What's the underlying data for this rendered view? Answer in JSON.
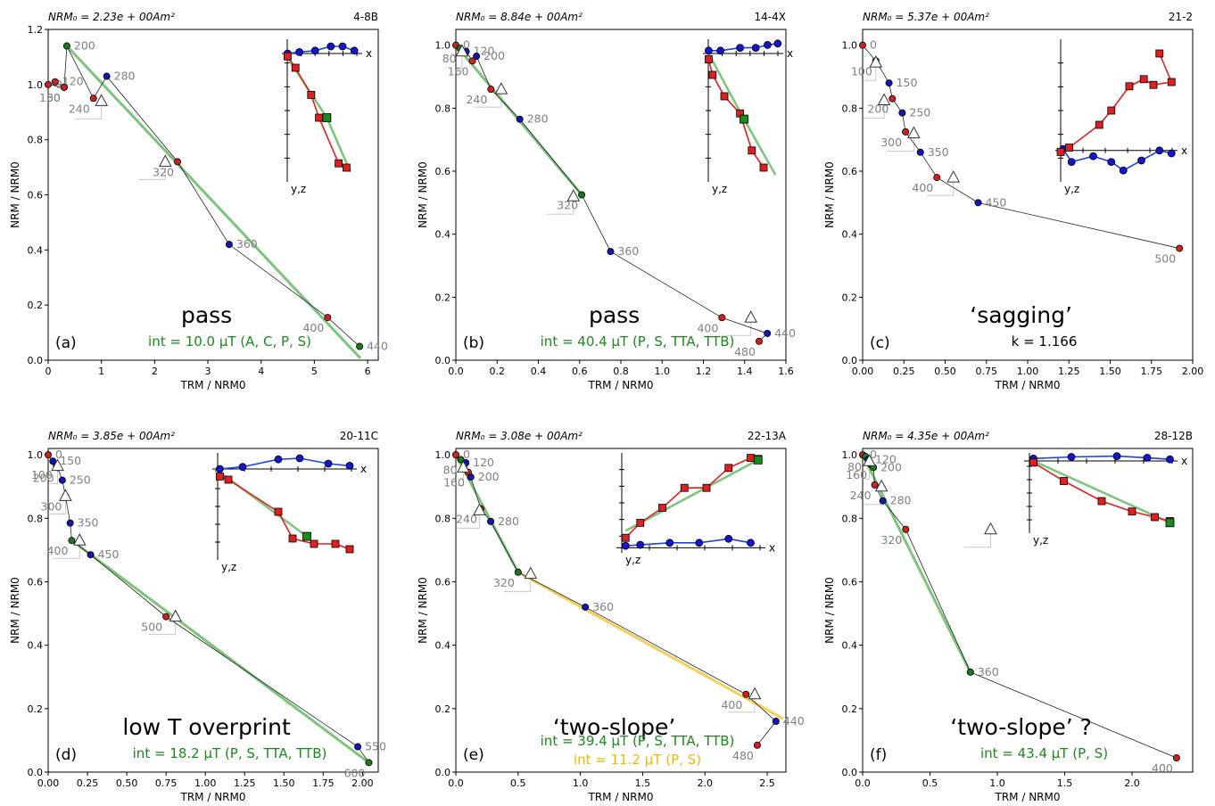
{
  "chart_data": [
    {
      "id": "a",
      "type": "scatter",
      "header_left": "NRM₀ = 2.23e + 00Am²",
      "header_right": "4-8B",
      "xlabel": "TRM / NRM0",
      "ylabel": "NRM / NRM0",
      "xlim": [
        0,
        6.2
      ],
      "ylim": [
        0,
        1.2
      ],
      "xticks": [
        "0",
        "1",
        "2",
        "3",
        "4",
        "5",
        "6"
      ],
      "xtick_values": [
        0,
        1,
        2,
        3,
        4,
        5,
        6
      ],
      "yticks": [
        "0.0",
        "0.2",
        "0.4",
        "0.6",
        "0.8",
        "1.0",
        "1.2"
      ],
      "ytick_values": [
        0,
        0.2,
        0.4,
        0.6,
        0.8,
        1.0,
        1.2
      ],
      "points": [
        {
          "x": 0.0,
          "y": 1.0,
          "label": "0",
          "color": "#cc2222"
        },
        {
          "x": 0.3,
          "y": 0.99,
          "label": "80",
          "color": "#cc2222"
        },
        {
          "x": 0.13,
          "y": 1.01,
          "label": "120",
          "color": "#cc2222"
        },
        {
          "x": 0.3,
          "y": 0.99,
          "label": "160",
          "color": "#cc2222"
        },
        {
          "x": 0.35,
          "y": 1.14,
          "label": "200",
          "color": "#1a7a1a"
        },
        {
          "x": 0.85,
          "y": 0.95,
          "label": "240",
          "color": "#cc2222"
        },
        {
          "x": 1.1,
          "y": 1.03,
          "label": "280",
          "color": "#1515b0"
        },
        {
          "x": 2.43,
          "y": 0.72,
          "label": "320",
          "color": "#cc2222"
        },
        {
          "x": 3.4,
          "y": 0.42,
          "label": "360",
          "color": "#1515b0"
        },
        {
          "x": 5.25,
          "y": 0.155,
          "label": "400",
          "color": "#cc2222"
        },
        {
          "x": 5.85,
          "y": 0.05,
          "label": "440",
          "color": "#1a7a1a"
        }
      ],
      "fit_line": [
        [
          0.35,
          1.14
        ],
        [
          5.85,
          0.01
        ]
      ],
      "ptrm_checks": [
        {
          "x": 1.0,
          "y": 0.94
        },
        {
          "x": 2.2,
          "y": 0.72
        }
      ],
      "verdict": "pass",
      "int_label": "int = 10.0 μT (A, C, P, S)",
      "int_color": "#1a8a1a",
      "letter": "(a)"
    },
    {
      "id": "b",
      "type": "scatter",
      "header_left": "NRM₀ = 8.84e + 00Am²",
      "header_right": "14-4X",
      "xlabel": "TRM / NRM0",
      "ylabel": "NRM / NRM0",
      "xlim": [
        0,
        1.6
      ],
      "ylim": [
        0,
        1.05
      ],
      "xticks": [
        "0.0",
        "0.2",
        "0.4",
        "0.6",
        "0.8",
        "1.0",
        "1.2",
        "1.4",
        "1.6"
      ],
      "xtick_values": [
        0,
        0.2,
        0.4,
        0.6,
        0.8,
        1.0,
        1.2,
        1.4,
        1.6
      ],
      "yticks": [
        "0.0",
        "0.2",
        "0.4",
        "0.6",
        "0.8",
        "1.0"
      ],
      "ytick_values": [
        0,
        0.2,
        0.4,
        0.6,
        0.8,
        1.0
      ],
      "points": [
        {
          "x": 0.0,
          "y": 1.0,
          "label": "0",
          "color": "#cc2222"
        },
        {
          "x": 0.02,
          "y": 0.99,
          "label": "80",
          "color": "#1a7a1a"
        },
        {
          "x": 0.05,
          "y": 0.98,
          "label": "120",
          "color": "#1515b0"
        },
        {
          "x": 0.08,
          "y": 0.95,
          "label": "160",
          "color": "#cc2222"
        },
        {
          "x": 0.1,
          "y": 0.965,
          "label": "200",
          "color": "#1515b0"
        },
        {
          "x": 0.17,
          "y": 0.86,
          "label": "240",
          "color": "#cc2222"
        },
        {
          "x": 0.31,
          "y": 0.765,
          "label": "280",
          "color": "#1515b0"
        },
        {
          "x": 0.61,
          "y": 0.525,
          "label": "320",
          "color": "#1a7a1a"
        },
        {
          "x": 0.75,
          "y": 0.345,
          "label": "360",
          "color": "#1515b0"
        },
        {
          "x": 1.29,
          "y": 0.135,
          "label": "400",
          "color": "#cc2222"
        },
        {
          "x": 1.51,
          "y": 0.085,
          "label": "440",
          "color": "#1515b0"
        },
        {
          "x": 1.47,
          "y": 0.06,
          "label": "480",
          "color": "#cc2222"
        }
      ],
      "fit_line": [
        [
          0.0,
          1.0
        ],
        [
          0.61,
          0.525
        ]
      ],
      "ptrm_checks": [
        {
          "x": 0.03,
          "y": 0.98
        },
        {
          "x": 0.22,
          "y": 0.86
        },
        {
          "x": 0.57,
          "y": 0.52
        },
        {
          "x": 1.43,
          "y": 0.135
        }
      ],
      "verdict": "pass",
      "int_label": "int = 40.4 μT (P, S, TTA, TTB)",
      "int_color": "#1a8a1a",
      "letter": "(b)"
    },
    {
      "id": "c",
      "type": "scatter",
      "header_left": "NRM₀ = 5.37e + 00Am²",
      "header_right": "21-2",
      "xlabel": "TRM / NRM0",
      "ylabel": "NRM / NRM0",
      "xlim": [
        0,
        2.0
      ],
      "ylim": [
        0,
        1.05
      ],
      "xticks": [
        "0.00",
        "0.25",
        "0.50",
        "0.75",
        "1.00",
        "1.25",
        "1.50",
        "1.75",
        "2.00"
      ],
      "xtick_values": [
        0,
        0.25,
        0.5,
        0.75,
        1.0,
        1.25,
        1.5,
        1.75,
        2.0
      ],
      "yticks": [
        "0.0",
        "0.2",
        "0.4",
        "0.6",
        "0.8",
        "1.0"
      ],
      "ytick_values": [
        0,
        0.2,
        0.4,
        0.6,
        0.8,
        1.0
      ],
      "points": [
        {
          "x": 0.0,
          "y": 1.0,
          "label": "0",
          "color": "#cc2222"
        },
        {
          "x": 0.08,
          "y": 0.95,
          "label": "100",
          "color": "#1515b0"
        },
        {
          "x": 0.16,
          "y": 0.88,
          "label": "150",
          "color": "#1515b0"
        },
        {
          "x": 0.18,
          "y": 0.83,
          "label": "200",
          "color": "#cc2222"
        },
        {
          "x": 0.24,
          "y": 0.785,
          "label": "250",
          "color": "#1515b0"
        },
        {
          "x": 0.26,
          "y": 0.725,
          "label": "300",
          "color": "#cc2222"
        },
        {
          "x": 0.35,
          "y": 0.66,
          "label": "350",
          "color": "#1515b0"
        },
        {
          "x": 0.45,
          "y": 0.58,
          "label": "400",
          "color": "#cc2222"
        },
        {
          "x": 0.7,
          "y": 0.5,
          "label": "450",
          "color": "#1515b0"
        },
        {
          "x": 1.92,
          "y": 0.355,
          "label": "500",
          "color": "#cc2222"
        }
      ],
      "fit_line": null,
      "ptrm_checks": [
        {
          "x": 0.08,
          "y": 0.945
        },
        {
          "x": 0.13,
          "y": 0.825
        },
        {
          "x": 0.31,
          "y": 0.72
        },
        {
          "x": 0.55,
          "y": 0.58
        }
      ],
      "verdict": "‘sagging’",
      "int_label": "k = 1.166",
      "int_color": "#000000",
      "letter": "(c)"
    },
    {
      "id": "d",
      "type": "scatter",
      "header_left": "NRM₀ = 3.85e + 00Am²",
      "header_right": "20-11C",
      "xlabel": "TRM / NRM0",
      "ylabel": "NRM / NRM0",
      "xlim": [
        0,
        2.1
      ],
      "ylim": [
        0,
        1.02
      ],
      "xticks": [
        "0.00",
        "0.25",
        "0.50",
        "0.75",
        "1.00",
        "1.25",
        "1.50",
        "1.75",
        "2.00"
      ],
      "xtick_values": [
        0,
        0.25,
        0.5,
        0.75,
        1.0,
        1.25,
        1.5,
        1.75,
        2.0
      ],
      "yticks": [
        "0.0",
        "0.2",
        "0.4",
        "0.6",
        "0.8",
        "1.0"
      ],
      "ytick_values": [
        0,
        0.2,
        0.4,
        0.6,
        0.8,
        1.0
      ],
      "points": [
        {
          "x": 0.0,
          "y": 1.0,
          "label": "0",
          "color": "#cc2222"
        },
        {
          "x": 0.05,
          "y": 0.97,
          "label": "100",
          "color": "#cc2222"
        },
        {
          "x": 0.03,
          "y": 0.98,
          "label": "150",
          "color": "#1515b0"
        },
        {
          "x": 0.06,
          "y": 0.96,
          "label": "200",
          "color": "#cc2222"
        },
        {
          "x": 0.09,
          "y": 0.92,
          "label": "250",
          "color": "#1515b0"
        },
        {
          "x": 0.11,
          "y": 0.87,
          "label": "300",
          "color": "#cc2222"
        },
        {
          "x": 0.14,
          "y": 0.785,
          "label": "350",
          "color": "#1515b0"
        },
        {
          "x": 0.15,
          "y": 0.73,
          "label": "400",
          "color": "#1a7a1a"
        },
        {
          "x": 0.27,
          "y": 0.685,
          "label": "450",
          "color": "#1515b0"
        },
        {
          "x": 0.75,
          "y": 0.49,
          "label": "500",
          "color": "#cc2222"
        },
        {
          "x": 1.97,
          "y": 0.08,
          "label": "550",
          "color": "#1515b0"
        },
        {
          "x": 2.04,
          "y": 0.03,
          "label": "600",
          "color": "#1a7a1a"
        }
      ],
      "fit_line": [
        [
          0.15,
          0.73
        ],
        [
          2.04,
          0.03
        ]
      ],
      "ptrm_checks": [
        {
          "x": 0.06,
          "y": 0.965
        },
        {
          "x": 0.11,
          "y": 0.87
        },
        {
          "x": 0.2,
          "y": 0.73
        },
        {
          "x": 0.81,
          "y": 0.49
        }
      ],
      "verdict": "low T overprint",
      "int_label": "int = 18.2 μT (P, S, TTA, TTB)",
      "int_color": "#1a8a1a",
      "letter": "(d)"
    },
    {
      "id": "e",
      "type": "scatter",
      "header_left": "NRM₀ = 3.08e + 00Am²",
      "header_right": "22-13A",
      "xlabel": "TRM / NRM0",
      "ylabel": "NRM / NRM0",
      "xlim": [
        0,
        2.65
      ],
      "ylim": [
        0,
        1.02
      ],
      "xticks": [
        "0.0",
        "0.5",
        "1.0",
        "1.5",
        "2.0",
        "2.5"
      ],
      "xtick_values": [
        0,
        0.5,
        1.0,
        1.5,
        2.0,
        2.5
      ],
      "yticks": [
        "0.0",
        "0.2",
        "0.4",
        "0.6",
        "0.8",
        "1.0"
      ],
      "ytick_values": [
        0,
        0.2,
        0.4,
        0.6,
        0.8,
        1.0
      ],
      "points": [
        {
          "x": 0.0,
          "y": 1.0,
          "label": "0",
          "color": "#cc2222"
        },
        {
          "x": 0.04,
          "y": 0.985,
          "label": "80",
          "color": "#1a7a1a"
        },
        {
          "x": 0.08,
          "y": 0.975,
          "label": "120",
          "color": "#1515b0"
        },
        {
          "x": 0.1,
          "y": 0.945,
          "label": "160",
          "color": "#cc2222"
        },
        {
          "x": 0.12,
          "y": 0.93,
          "label": "200",
          "color": "#1515b0"
        },
        {
          "x": 0.2,
          "y": 0.83,
          "label": "240",
          "color": "#cc2222"
        },
        {
          "x": 0.28,
          "y": 0.79,
          "label": "280",
          "color": "#1515b0"
        },
        {
          "x": 0.5,
          "y": 0.63,
          "label": "320",
          "color": "#1a7a1a"
        },
        {
          "x": 1.04,
          "y": 0.52,
          "label": "360",
          "color": "#1515b0"
        },
        {
          "x": 2.33,
          "y": 0.245,
          "label": "400",
          "color": "#cc2222"
        },
        {
          "x": 2.57,
          "y": 0.16,
          "label": "440",
          "color": "#1515b0"
        },
        {
          "x": 2.42,
          "y": 0.085,
          "label": "480",
          "color": "#cc2222"
        }
      ],
      "fit_line": [
        [
          0.0,
          1.0
        ],
        [
          0.5,
          0.63
        ]
      ],
      "fit_line2": [
        [
          0.5,
          0.63
        ],
        [
          2.62,
          0.17
        ]
      ],
      "ptrm_checks": [
        {
          "x": 0.06,
          "y": 0.96
        },
        {
          "x": 0.19,
          "y": 0.825
        },
        {
          "x": 0.6,
          "y": 0.625
        },
        {
          "x": 2.4,
          "y": 0.245
        }
      ],
      "verdict": "‘two-slope’",
      "int_label": "int = 39.4 μT (P, S, TTA, TTB)",
      "int_color": "#1a8a1a",
      "int_label2": "int = 11.2 μT (P, S)",
      "int_color2": "#f2b705",
      "letter": "(e)"
    },
    {
      "id": "f",
      "type": "scatter",
      "header_left": "NRM₀ = 4.35e + 00Am²",
      "header_right": "28-12B",
      "xlabel": "TRM / NRM0",
      "ylabel": "NRM / NRM0",
      "xlim": [
        0,
        2.45
      ],
      "ylim": [
        0,
        1.02
      ],
      "xticks": [
        "0.0",
        "0.5",
        "1.0",
        "1.5",
        "2.0"
      ],
      "xtick_values": [
        0,
        0.5,
        1.0,
        1.5,
        2.0
      ],
      "yticks": [
        "0.0",
        "0.2",
        "0.4",
        "0.6",
        "0.8",
        "1.0"
      ],
      "ytick_values": [
        0,
        0.2,
        0.4,
        0.6,
        0.8,
        1.0
      ],
      "points": [
        {
          "x": 0.0,
          "y": 1.0,
          "label": "0",
          "color": "#cc2222"
        },
        {
          "x": 0.02,
          "y": 0.995,
          "label": "80",
          "color": "#1a7a1a"
        },
        {
          "x": 0.04,
          "y": 0.985,
          "label": "120",
          "color": "#1515b0"
        },
        {
          "x": 0.06,
          "y": 0.97,
          "label": "160",
          "color": "#1515b0"
        },
        {
          "x": 0.08,
          "y": 0.96,
          "label": "200",
          "color": "#1a7a1a"
        },
        {
          "x": 0.09,
          "y": 0.905,
          "label": "240",
          "color": "#cc2222"
        },
        {
          "x": 0.15,
          "y": 0.855,
          "label": "280",
          "color": "#1515b0"
        },
        {
          "x": 0.32,
          "y": 0.765,
          "label": "320",
          "color": "#cc2222"
        },
        {
          "x": 0.8,
          "y": 0.315,
          "label": "360",
          "color": "#1a7a1a"
        },
        {
          "x": 2.33,
          "y": 0.045,
          "label": "400",
          "color": "#cc2222"
        }
      ],
      "fit_line": [
        [
          0.0,
          1.0
        ],
        [
          0.8,
          0.315
        ]
      ],
      "ptrm_checks": [
        {
          "x": 0.05,
          "y": 0.98
        },
        {
          "x": 0.14,
          "y": 0.9
        },
        {
          "x": 0.95,
          "y": 0.765
        }
      ],
      "verdict": "‘two-slope’ ?",
      "int_label": "int = 43.4 μT (P, S)",
      "int_color": "#1a8a1a",
      "letter": "(f)"
    }
  ],
  "inset": {
    "x_axis_label": "x",
    "yz_axis_label": "y,z"
  }
}
